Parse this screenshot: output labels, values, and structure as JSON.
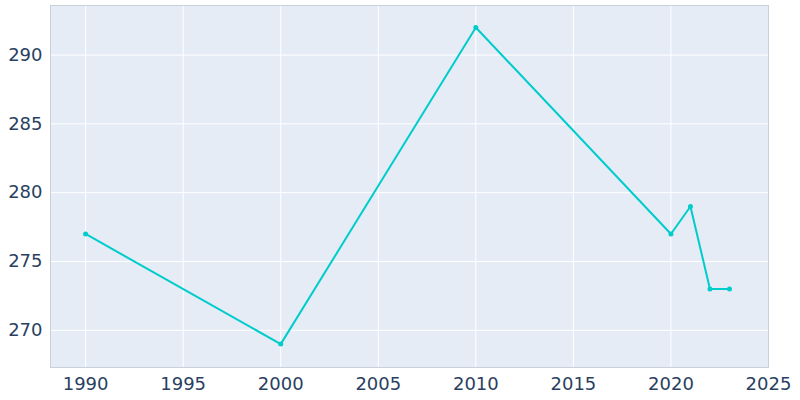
{
  "chart_data": {
    "type": "line",
    "x": [
      1990,
      2000,
      2010,
      2020,
      2021,
      2022,
      2023
    ],
    "values": [
      277,
      269,
      292,
      277,
      279,
      273,
      273
    ],
    "color": "#00cccc",
    "marker": "circle",
    "xlim": [
      1988.2,
      2025
    ],
    "xticks": [
      1990,
      1995,
      2000,
      2005,
      2010,
      2015,
      2020,
      2025
    ],
    "ylim": [
      267.3,
      293.6
    ],
    "yticks": [
      270,
      275,
      280,
      285,
      290
    ],
    "grid": true
  }
}
